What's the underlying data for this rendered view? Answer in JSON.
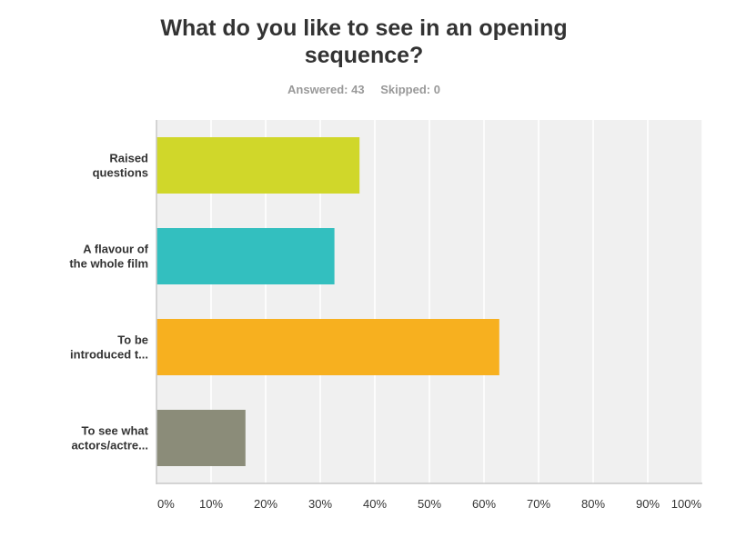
{
  "title_line1": "What do you like to see in an opening",
  "title_line2": "sequence?",
  "answered": "Answered: 43",
  "skipped": "Skipped: 0",
  "chart_data": {
    "type": "bar",
    "orientation": "horizontal",
    "categories": [
      [
        "Raised",
        "questions"
      ],
      [
        "A flavour of",
        "the whole film"
      ],
      [
        "To be",
        "introduced t..."
      ],
      [
        "To see what",
        "actors/actre..."
      ]
    ],
    "values": [
      37.2,
      32.6,
      62.8,
      16.3
    ],
    "colors": [
      "#d0d72a",
      "#33bfbf",
      "#f7b01f",
      "#8b8c79"
    ],
    "xlim": [
      0,
      100
    ],
    "ticks": [
      0,
      10,
      20,
      30,
      40,
      50,
      60,
      70,
      80,
      90,
      100
    ],
    "tick_labels": [
      "0%",
      "10%",
      "20%",
      "30%",
      "40%",
      "50%",
      "60%",
      "70%",
      "80%",
      "90%",
      "100%"
    ],
    "grid": true
  }
}
